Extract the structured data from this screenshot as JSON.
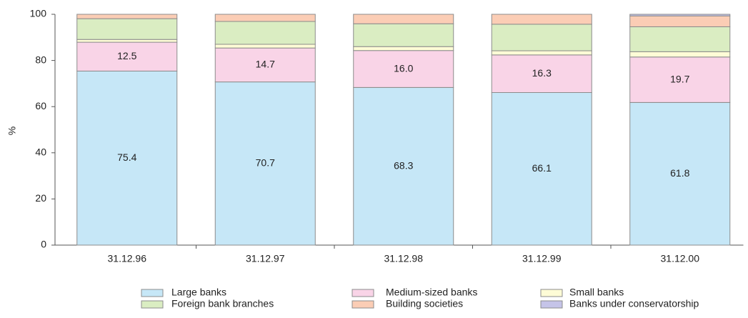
{
  "chart_data": {
    "type": "stacked_bar",
    "y_label": "%",
    "categories": [
      "31.12.96",
      "31.12.97",
      "31.12.98",
      "31.12.99",
      "31.12.00"
    ],
    "series": [
      {
        "name": "Large banks",
        "color": "#c6e7f7",
        "values": [
          75.4,
          70.7,
          68.3,
          66.1,
          61.8
        ],
        "value_labels": [
          "75.4",
          "70.7",
          "68.3",
          "66.1",
          "61.8"
        ]
      },
      {
        "name": "Medium-sized banks",
        "color": "#f9d4e7",
        "values": [
          12.5,
          14.7,
          16.0,
          16.3,
          19.7
        ],
        "value_labels": [
          "12.5",
          "14.7",
          "16.0",
          "16.3",
          "19.7"
        ]
      },
      {
        "name": "Small banks",
        "color": "#fefcd6",
        "values": [
          1.2,
          1.6,
          1.7,
          1.8,
          2.3
        ]
      },
      {
        "name": "Foreign bank branches",
        "color": "#daedc2",
        "values": [
          9.0,
          9.9,
          9.9,
          11.5,
          10.8
        ]
      },
      {
        "name": "Building societies",
        "color": "#fbcdb5",
        "values": [
          1.9,
          3.1,
          4.1,
          4.3,
          4.7
        ]
      },
      {
        "name": "Banks under conservatorship",
        "color": "#c5c4e8",
        "values": [
          0,
          0,
          0,
          0,
          0.7
        ]
      }
    ],
    "ylim": [
      0,
      100
    ],
    "yticks": [
      0,
      20,
      40,
      60,
      80,
      100
    ],
    "legend": "bottom"
  }
}
